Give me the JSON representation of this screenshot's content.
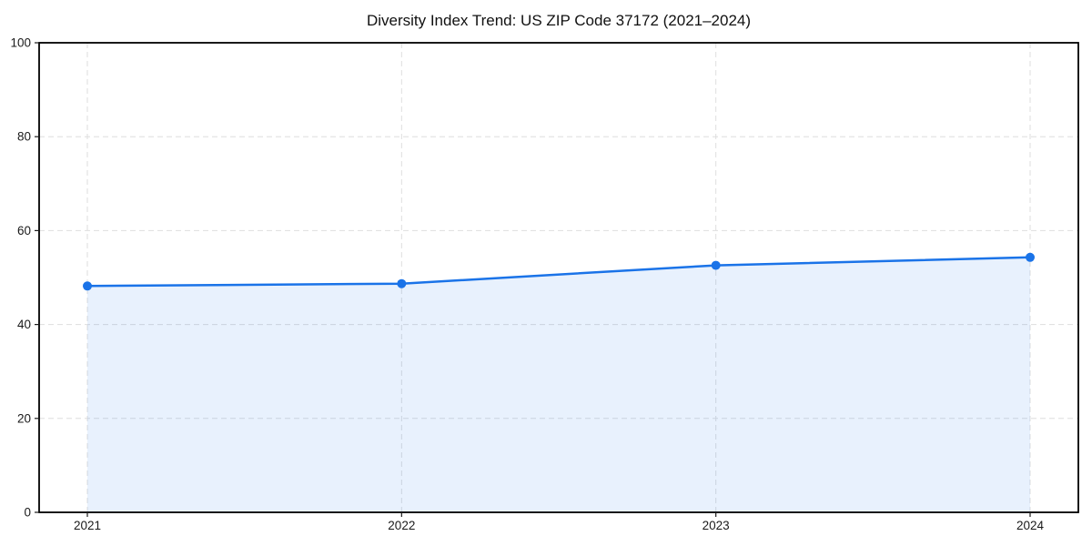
{
  "title": "Diversity Index Trend: US ZIP Code 37172 (2021–2024)",
  "chart_data": {
    "type": "area",
    "title": "Diversity Index Trend: US ZIP Code 37172 (2021–2024)",
    "categories": [
      "2021",
      "2022",
      "2023",
      "2024"
    ],
    "series": [
      {
        "name": "Diversity Index",
        "values": [
          48.2,
          48.7,
          52.6,
          54.3
        ]
      }
    ],
    "xlabel": "",
    "ylabel": "",
    "ylim": [
      0,
      100
    ],
    "yticks": [
      0,
      20,
      40,
      60,
      80,
      100
    ],
    "grid": "dashed, both axes",
    "legend": "none",
    "marker": "circle",
    "colors": {
      "line": "#1a73e8",
      "marker": "#1a73e8",
      "fill": "#1a73e8",
      "fill_opacity": 0.1,
      "grid": "#dedede",
      "spine": "#000000",
      "tick_label": "#1a1a1a",
      "background": "#ffffff"
    }
  }
}
